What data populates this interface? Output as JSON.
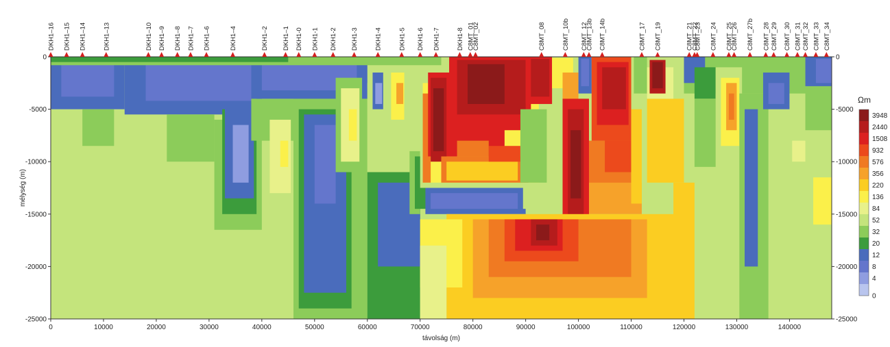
{
  "chart_data": {
    "type": "heatmap",
    "title": "",
    "xlabel": "távolság (m)",
    "ylabel": "mélység (m)",
    "xlim": [
      0,
      148000
    ],
    "ylim": [
      -25000,
      0
    ],
    "x_ticks": [
      0,
      10000,
      20000,
      30000,
      40000,
      50000,
      60000,
      70000,
      80000,
      90000,
      100000,
      110000,
      120000,
      130000,
      140000
    ],
    "y_ticks": [
      0,
      -5000,
      -10000,
      -15000,
      -20000,
      -25000
    ],
    "colorbar": {
      "unit": "Ωm",
      "labels": [
        "3948",
        "2440",
        "1508",
        "932",
        "576",
        "356",
        "220",
        "136",
        "84",
        "52",
        "32",
        "20",
        "12",
        "8",
        "4",
        "0"
      ],
      "colors": [
        "#8b1a1a",
        "#b51c1c",
        "#dc2020",
        "#ec4a1c",
        "#f07a22",
        "#f6a22a",
        "#fbcd22",
        "#fbf04a",
        "#e8f18a",
        "#c4e47c",
        "#8ccc5a",
        "#3c9c3c",
        "#4a6cbc",
        "#6476cc",
        "#8f9de0",
        "#b9c5ee"
      ]
    },
    "stations": [
      {
        "name": "DKH1–16",
        "x": 0
      },
      {
        "name": "DKH1–15",
        "x": 3000
      },
      {
        "name": "DKH1–14",
        "x": 6000
      },
      {
        "name": "DKH1–13",
        "x": 10500
      },
      {
        "name": "DKH1–10",
        "x": 18500
      },
      {
        "name": "DKH1–9",
        "x": 21000
      },
      {
        "name": "DKH1–8",
        "x": 24000
      },
      {
        "name": "DKH1–7",
        "x": 26500
      },
      {
        "name": "DKH1–6",
        "x": 29500
      },
      {
        "name": "DKH1–4",
        "x": 34500
      },
      {
        "name": "DKH1–2",
        "x": 40500
      },
      {
        "name": "DKH1–1",
        "x": 44500
      },
      {
        "name": "DKH1-0",
        "x": 47000
      },
      {
        "name": "DKH1-1",
        "x": 50000
      },
      {
        "name": "DKH1-2",
        "x": 53500
      },
      {
        "name": "DKH1-3",
        "x": 57500
      },
      {
        "name": "DKH1-4",
        "x": 62000
      },
      {
        "name": "DKH1-5",
        "x": 66500
      },
      {
        "name": "DKH1-6",
        "x": 70000
      },
      {
        "name": "DKH1-7",
        "x": 73000
      },
      {
        "name": "DKH1-8",
        "x": 77500
      },
      {
        "name": "C8MT_01",
        "x": 79500
      },
      {
        "name": "C8MT_02",
        "x": 80500
      },
      {
        "name": "C8MT_08",
        "x": 93000
      },
      {
        "name": "C8MT_10b",
        "x": 97500
      },
      {
        "name": "C8MT_12",
        "x": 101000
      },
      {
        "name": "C8MT_13b",
        "x": 102000
      },
      {
        "name": "C8MT_14b",
        "x": 104500
      },
      {
        "name": "C8MT_17",
        "x": 112000
      },
      {
        "name": "C8MT_19",
        "x": 115000
      },
      {
        "name": "C8MT_21",
        "x": 121000
      },
      {
        "name": "C8MT_22",
        "x": 122000
      },
      {
        "name": "C8MT_23",
        "x": 122500
      },
      {
        "name": "C8MT_24",
        "x": 125500
      },
      {
        "name": "C8MT_25",
        "x": 128500
      },
      {
        "name": "C8MT_26",
        "x": 129500
      },
      {
        "name": "C8MT_27b",
        "x": 132500
      },
      {
        "name": "C8MT_28",
        "x": 135500
      },
      {
        "name": "C8MT_29",
        "x": 137000
      },
      {
        "name": "C8MT_30",
        "x": 139500
      },
      {
        "name": "C8MT_31",
        "x": 141500
      },
      {
        "name": "C8MT_32",
        "x": 143000
      },
      {
        "name": "C8MT_33",
        "x": 145000
      },
      {
        "name": "C8MT_34",
        "x": 147000
      }
    ],
    "background_level": 9,
    "regions": [
      {
        "level": 12,
        "x": [
          0,
          14000
        ],
        "y": [
          -5000,
          0
        ]
      },
      {
        "level": 13,
        "x": [
          2000,
          12000
        ],
        "y": [
          -3800,
          -200
        ]
      },
      {
        "level": 12,
        "x": [
          14000,
          40000
        ],
        "y": [
          -5500,
          0
        ]
      },
      {
        "level": 13,
        "x": [
          18000,
          38000
        ],
        "y": [
          -4200,
          -300
        ]
      },
      {
        "level": 10,
        "x": [
          6000,
          12000
        ],
        "y": [
          -8500,
          -5000
        ]
      },
      {
        "level": 10,
        "x": [
          22000,
          31000
        ],
        "y": [
          -10000,
          -5500
        ]
      },
      {
        "level": 10,
        "x": [
          31000,
          40000
        ],
        "y": [
          -16500,
          -6000
        ]
      },
      {
        "level": 11,
        "x": [
          32500,
          39000
        ],
        "y": [
          -15000,
          -5000
        ]
      },
      {
        "level": 12,
        "x": [
          33000,
          38500
        ],
        "y": [
          -13500,
          -4500
        ]
      },
      {
        "level": 14,
        "x": [
          34500,
          37500
        ],
        "y": [
          -12000,
          -6500
        ]
      },
      {
        "level": 10,
        "x": [
          38000,
          46000
        ],
        "y": [
          -8000,
          -4000
        ]
      },
      {
        "level": 8,
        "x": [
          41500,
          45500
        ],
        "y": [
          -13000,
          -6000
        ]
      },
      {
        "level": 7,
        "x": [
          43500,
          45000
        ],
        "y": [
          -10500,
          -8000
        ]
      },
      {
        "level": 10,
        "x": [
          46000,
          60000
        ],
        "y": [
          -25000,
          -3000
        ]
      },
      {
        "level": 11,
        "x": [
          47000,
          57000
        ],
        "y": [
          -24000,
          -5000
        ]
      },
      {
        "level": 12,
        "x": [
          48000,
          56000
        ],
        "y": [
          -22500,
          -5500
        ]
      },
      {
        "level": 13,
        "x": [
          50000,
          54000
        ],
        "y": [
          -14000,
          -6500
        ]
      },
      {
        "level": 12,
        "x": [
          39000,
          60000
        ],
        "y": [
          -4000,
          -200
        ]
      },
      {
        "level": 13,
        "x": [
          40000,
          58000
        ],
        "y": [
          -3200,
          -500
        ]
      },
      {
        "level": 10,
        "x": [
          54000,
          59000
        ],
        "y": [
          -11000,
          -2000
        ]
      },
      {
        "level": 8,
        "x": [
          55000,
          58500
        ],
        "y": [
          -10000,
          -3000
        ]
      },
      {
        "level": 7,
        "x": [
          56500,
          58000
        ],
        "y": [
          -8000,
          -5000
        ]
      },
      {
        "level": 9,
        "x": [
          60000,
          70000
        ],
        "y": [
          -11000,
          -2500
        ]
      },
      {
        "level": 11,
        "x": [
          60000,
          70000
        ],
        "y": [
          -25000,
          -11000
        ]
      },
      {
        "level": 12,
        "x": [
          62000,
          70000
        ],
        "y": [
          -20000,
          -12000
        ]
      },
      {
        "level": 12,
        "x": [
          61000,
          63000
        ],
        "y": [
          -5000,
          -1500
        ]
      },
      {
        "level": 14,
        "x": [
          61500,
          62800
        ],
        "y": [
          -4500,
          -2500
        ]
      },
      {
        "level": 7,
        "x": [
          64500,
          67000
        ],
        "y": [
          -6000,
          -1500
        ]
      },
      {
        "level": 5,
        "x": [
          65500,
          66800
        ],
        "y": [
          -4500,
          -2500
        ]
      },
      {
        "level": 9,
        "x": [
          67000,
          70000
        ],
        "y": [
          -9000,
          -3000
        ]
      },
      {
        "level": 10,
        "x": [
          68000,
          70000
        ],
        "y": [
          -15000,
          -9000
        ]
      },
      {
        "level": 11,
        "x": [
          69000,
          72000
        ],
        "y": [
          -14500,
          -9500
        ]
      },
      {
        "level": 12,
        "x": [
          71000,
          90000
        ],
        "y": [
          -15000,
          -12500
        ]
      },
      {
        "level": 13,
        "x": [
          72000,
          88500
        ],
        "y": [
          -14500,
          -13000
        ]
      },
      {
        "level": 9,
        "x": [
          70000,
          98000
        ],
        "y": [
          -12500,
          -2000
        ]
      },
      {
        "level": 7,
        "x": [
          70500,
          92500
        ],
        "y": [
          -12000,
          -2500
        ]
      },
      {
        "level": 4,
        "x": [
          70500,
          72000
        ],
        "y": [
          -12000,
          -3500
        ]
      },
      {
        "level": 2,
        "x": [
          71500,
          86000
        ],
        "y": [
          -9500,
          -1500
        ]
      },
      {
        "level": 1,
        "x": [
          72000,
          75000
        ],
        "y": [
          -10000,
          -2000
        ]
      },
      {
        "level": 0,
        "x": [
          72500,
          74500
        ],
        "y": [
          -9000,
          -3000
        ]
      },
      {
        "level": 2,
        "x": [
          75500,
          91000
        ],
        "y": [
          -7000,
          0
        ]
      },
      {
        "level": 1,
        "x": [
          77000,
          90000
        ],
        "y": [
          -5500,
          -300
        ]
      },
      {
        "level": 0,
        "x": [
          79000,
          86000
        ],
        "y": [
          -4500,
          -700
        ]
      },
      {
        "level": 4,
        "x": [
          74000,
          90500
        ],
        "y": [
          -12000,
          -9500
        ]
      },
      {
        "level": 6,
        "x": [
          75000,
          88500
        ],
        "y": [
          -11800,
          -10000
        ]
      },
      {
        "level": 3,
        "x": [
          83000,
          89000
        ],
        "y": [
          -10000,
          -8500
        ]
      },
      {
        "level": 4,
        "x": [
          77000,
          83000
        ],
        "y": [
          -9500,
          -8000
        ]
      },
      {
        "level": 10,
        "x": [
          89000,
          94000
        ],
        "y": [
          -12000,
          -5000
        ]
      },
      {
        "level": 9,
        "x": [
          89500,
          94500
        ],
        "y": [
          -14500,
          -12500
        ]
      },
      {
        "level": 2,
        "x": [
          90000,
          95000
        ],
        "y": [
          -4500,
          0
        ]
      },
      {
        "level": 1,
        "x": [
          91000,
          94500
        ],
        "y": [
          -3800,
          -200
        ]
      },
      {
        "level": 7,
        "x": [
          95000,
          99000
        ],
        "y": [
          -3000,
          -100
        ]
      },
      {
        "level": 5,
        "x": [
          97000,
          100000
        ],
        "y": [
          -6000,
          -1500
        ]
      },
      {
        "level": 2,
        "x": [
          97000,
          102000
        ],
        "y": [
          -17000,
          -4000
        ]
      },
      {
        "level": 1,
        "x": [
          98000,
          101000
        ],
        "y": [
          -15000,
          -5000
        ]
      },
      {
        "level": 0,
        "x": [
          98500,
          100500
        ],
        "y": [
          -13500,
          -7000
        ]
      },
      {
        "level": 12,
        "x": [
          100000,
          102500
        ],
        "y": [
          -3500,
          0
        ]
      },
      {
        "level": 13,
        "x": [
          100500,
          102000
        ],
        "y": [
          -2800,
          -200
        ]
      },
      {
        "level": 3,
        "x": [
          102500,
          110000
        ],
        "y": [
          -8000,
          0
        ]
      },
      {
        "level": 2,
        "x": [
          103500,
          109500
        ],
        "y": [
          -6500,
          -500
        ]
      },
      {
        "level": 1,
        "x": [
          104500,
          109000
        ],
        "y": [
          -5000,
          -1000
        ]
      },
      {
        "level": 4,
        "x": [
          102000,
          110000
        ],
        "y": [
          -12500,
          -8000
        ]
      },
      {
        "level": 3,
        "x": [
          105000,
          110000
        ],
        "y": [
          -11000,
          -8000
        ]
      },
      {
        "level": 5,
        "x": [
          102000,
          112000
        ],
        "y": [
          -15000,
          -12000
        ]
      },
      {
        "level": 6,
        "x": [
          110000,
          112000
        ],
        "y": [
          -14000,
          -5000
        ]
      },
      {
        "level": 6,
        "x": [
          75000,
          120000
        ],
        "y": [
          -25000,
          -15000
        ]
      },
      {
        "level": 5,
        "x": [
          80000,
          113000
        ],
        "y": [
          -23000,
          -15500
        ]
      },
      {
        "level": 4,
        "x": [
          83000,
          110000
        ],
        "y": [
          -21000,
          -15500
        ]
      },
      {
        "level": 3,
        "x": [
          86000,
          100000
        ],
        "y": [
          -19500,
          -15500
        ]
      },
      {
        "level": 2,
        "x": [
          88000,
          97000
        ],
        "y": [
          -18500,
          -15500
        ]
      },
      {
        "level": 1,
        "x": [
          91000,
          96000
        ],
        "y": [
          -18000,
          -15500
        ]
      },
      {
        "level": 0,
        "x": [
          92000,
          94500
        ],
        "y": [
          -17500,
          -16000
        ]
      },
      {
        "level": 7,
        "x": [
          70000,
          78000
        ],
        "y": [
          -22000,
          -15500
        ]
      },
      {
        "level": 8,
        "x": [
          70000,
          75000
        ],
        "y": [
          -25000,
          -18000
        ]
      },
      {
        "level": 10,
        "x": [
          110500,
          113000
        ],
        "y": [
          -3500,
          0
        ]
      },
      {
        "level": 6,
        "x": [
          113000,
          120000
        ],
        "y": [
          -12000,
          -4000
        ]
      },
      {
        "level": 6,
        "x": [
          118000,
          122000
        ],
        "y": [
          -25000,
          -12000
        ]
      },
      {
        "level": 8,
        "x": [
          113000,
          118000
        ],
        "y": [
          -4000,
          -1000
        ]
      },
      {
        "level": 1,
        "x": [
          113500,
          116500
        ],
        "y": [
          -3500,
          -300
        ]
      },
      {
        "level": 0,
        "x": [
          114000,
          116000
        ],
        "y": [
          -3000,
          -500
        ]
      },
      {
        "level": 10,
        "x": [
          120000,
          148000
        ],
        "y": [
          -3500,
          0
        ]
      },
      {
        "level": 12,
        "x": [
          120000,
          124000
        ],
        "y": [
          -2500,
          0
        ]
      },
      {
        "level": 11,
        "x": [
          122000,
          126000
        ],
        "y": [
          -4000,
          -1000
        ]
      },
      {
        "level": 9,
        "x": [
          126000,
          131000
        ],
        "y": [
          -10000,
          -1000
        ]
      },
      {
        "level": 7,
        "x": [
          127000,
          130500
        ],
        "y": [
          -8500,
          -2000
        ]
      },
      {
        "level": 5,
        "x": [
          128000,
          130000
        ],
        "y": [
          -7000,
          -2500
        ]
      },
      {
        "level": 4,
        "x": [
          128500,
          129500
        ],
        "y": [
          -6000,
          -3500
        ]
      },
      {
        "level": 10,
        "x": [
          130500,
          136000
        ],
        "y": [
          -25000,
          -3500
        ]
      },
      {
        "level": 12,
        "x": [
          131500,
          134000
        ],
        "y": [
          -20000,
          -5000
        ]
      },
      {
        "level": 10,
        "x": [
          122000,
          126000
        ],
        "y": [
          -10500,
          -4000
        ]
      },
      {
        "level": 12,
        "x": [
          135000,
          140000
        ],
        "y": [
          -5000,
          -1500
        ]
      },
      {
        "level": 13,
        "x": [
          136000,
          139000
        ],
        "y": [
          -4500,
          -2500
        ]
      },
      {
        "level": 12,
        "x": [
          143000,
          148000
        ],
        "y": [
          -2800,
          0
        ]
      },
      {
        "level": 13,
        "x": [
          145000,
          148000
        ],
        "y": [
          -2500,
          -200
        ]
      },
      {
        "level": 8,
        "x": [
          140500,
          143000
        ],
        "y": [
          -10000,
          -8000
        ]
      },
      {
        "level": 7,
        "x": [
          144500,
          148000
        ],
        "y": [
          -16000,
          -11500
        ]
      },
      {
        "level": 10,
        "x": [
          143000,
          148000
        ],
        "y": [
          -7000,
          -3000
        ]
      },
      {
        "level": 10,
        "x": [
          0,
          74000
        ],
        "y": [
          -800,
          0
        ]
      },
      {
        "level": 11,
        "x": [
          0,
          45000
        ],
        "y": [
          -500,
          0
        ]
      }
    ]
  }
}
